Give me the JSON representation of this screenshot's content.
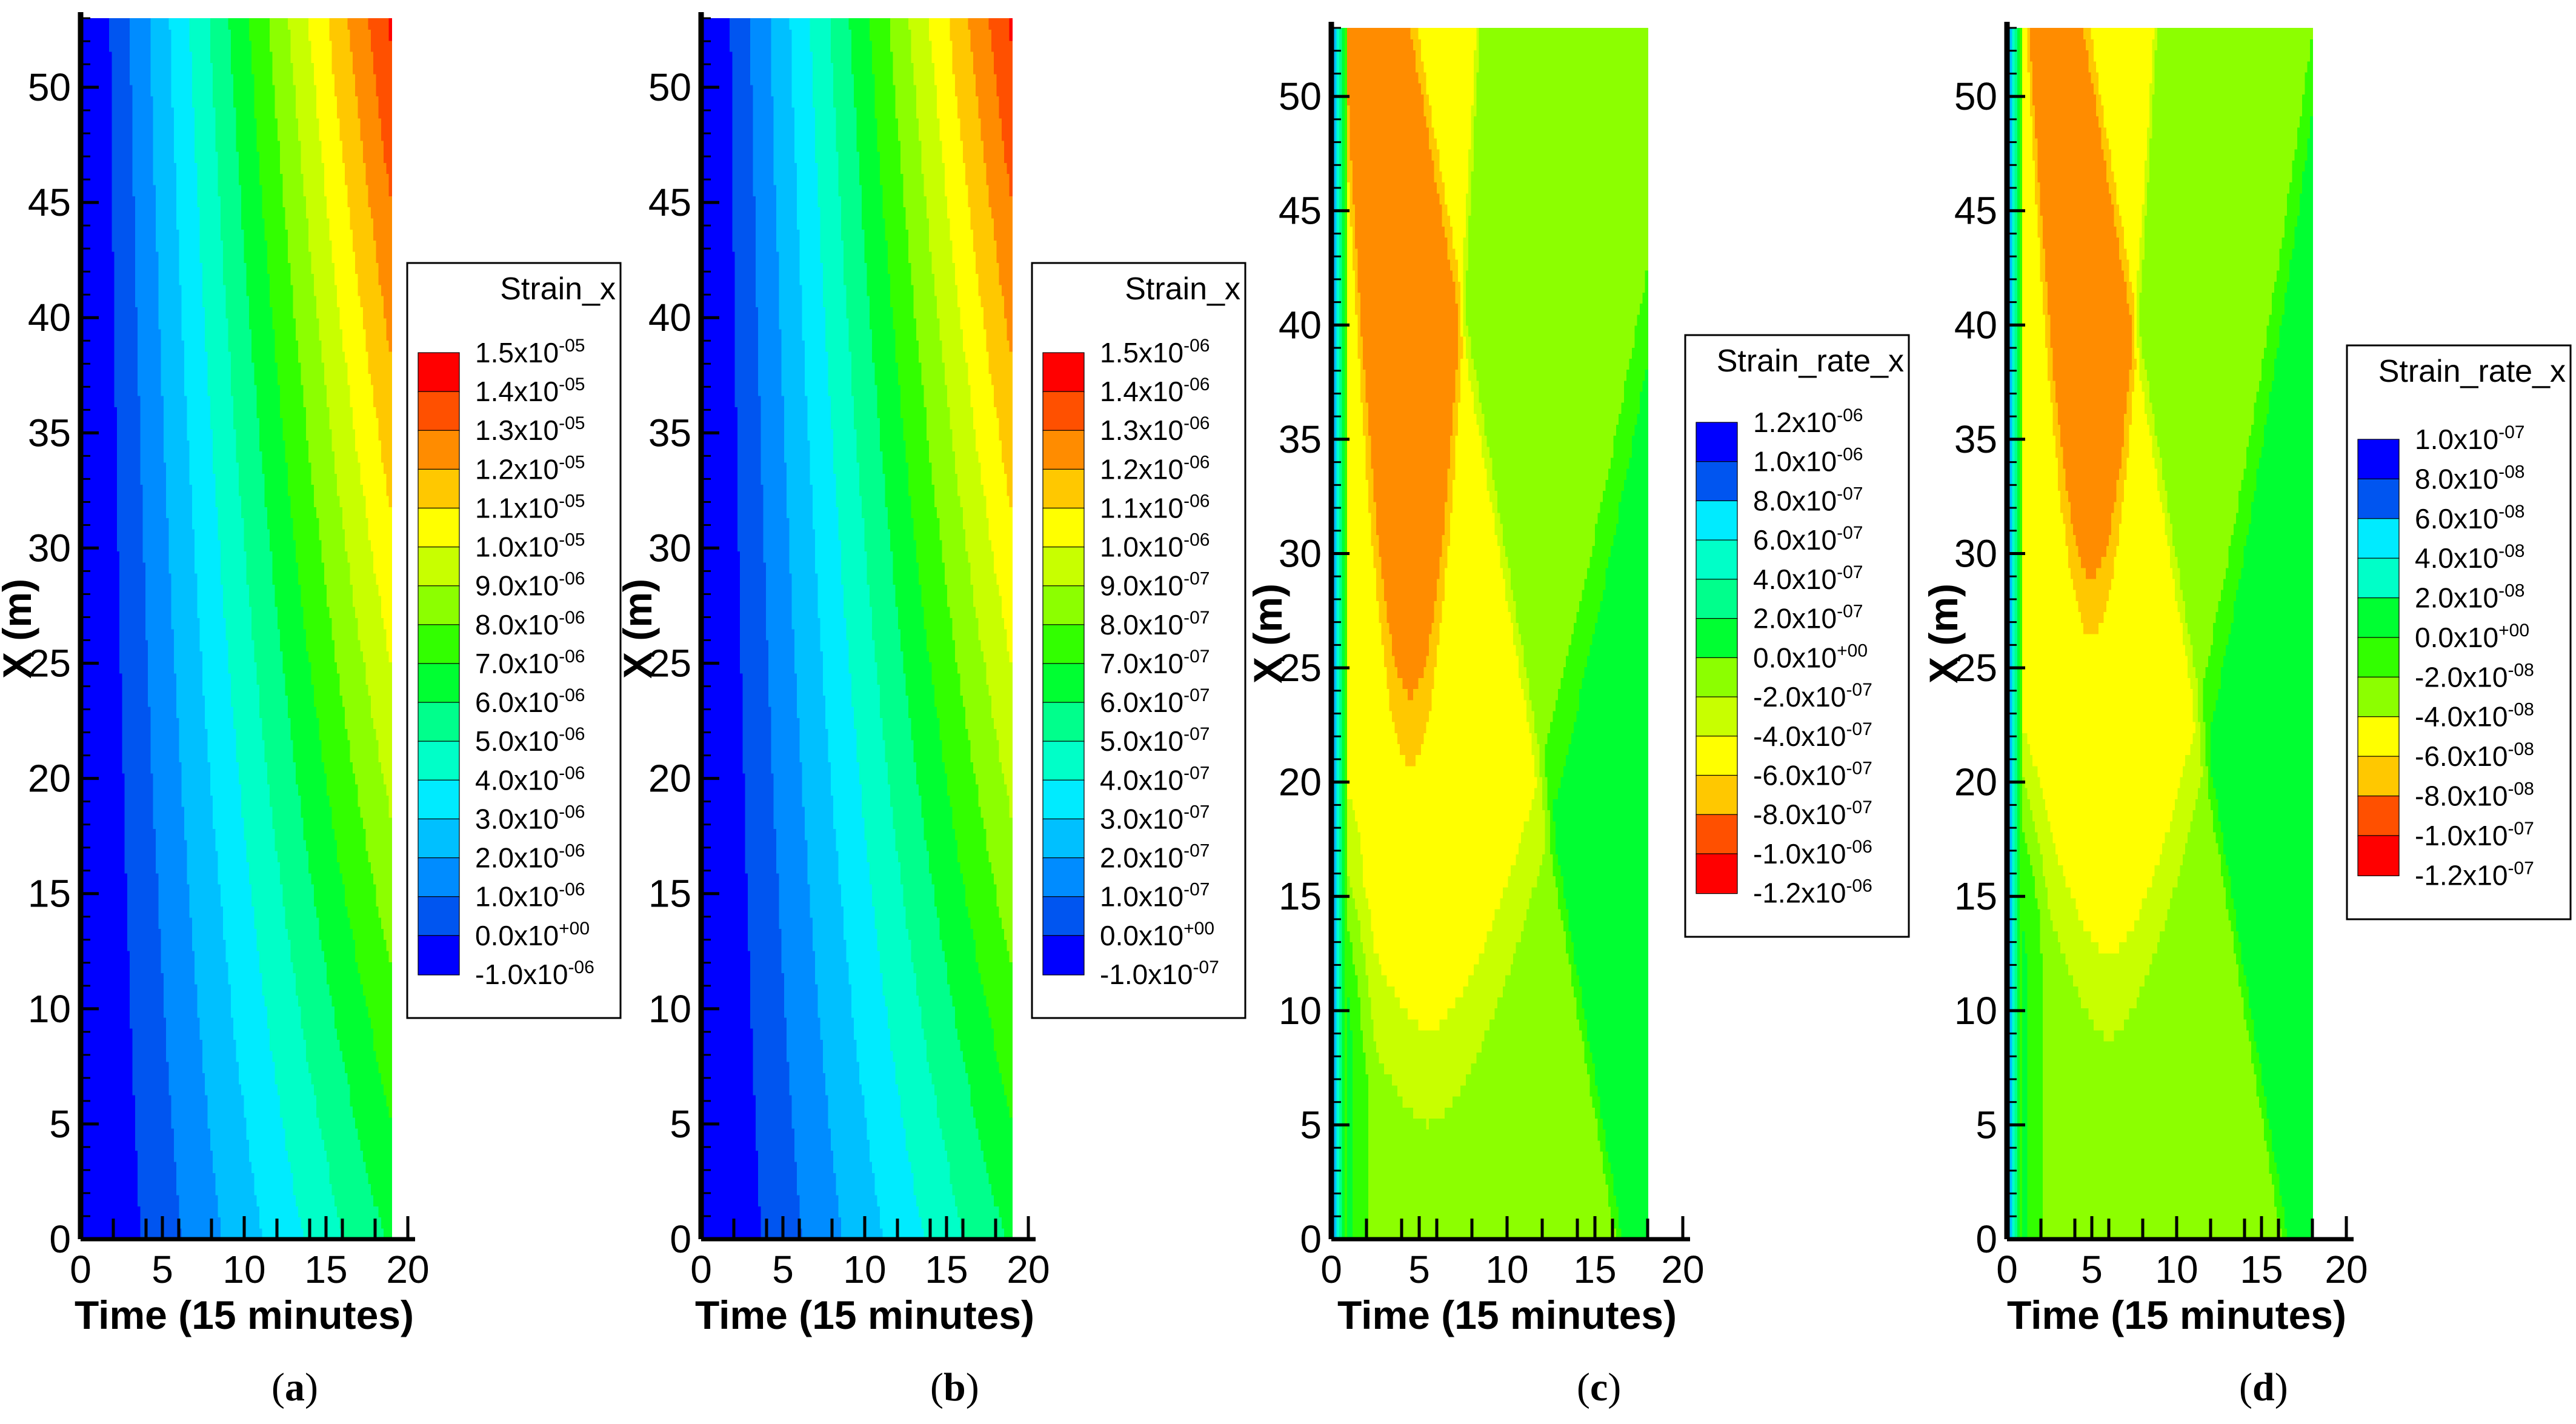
{
  "figure": {
    "panels": [
      {
        "label": "a",
        "legend_title": "Strain_x"
      },
      {
        "label": "b",
        "legend_title": "Strain_x"
      },
      {
        "label": "c",
        "legend_title": "Strain_rate_x"
      },
      {
        "label": "d",
        "legend_title": "Strain_rate_x"
      }
    ],
    "colors": {
      "palette_low_to_high": [
        "#0000ff",
        "#0055f0",
        "#008cff",
        "#00c0ff",
        "#00ebff",
        "#00ffc8",
        "#00ff8c",
        "#00ff32",
        "#32ff00",
        "#8cff00",
        "#c8ff00",
        "#ffff00",
        "#ffc800",
        "#ff8c00",
        "#ff5000",
        "#ff0000"
      ]
    }
  },
  "chart_data": [
    {
      "type": "contour",
      "panel": "(a)",
      "xlabel": "Time (15 minutes)",
      "ylabel": "X (m)",
      "xlim": [
        0,
        20
      ],
      "ylim": [
        0,
        53
      ],
      "x_ticks": [
        "0",
        "5",
        "10",
        "15",
        "20"
      ],
      "y_ticks": [
        "0",
        "5",
        "10",
        "15",
        "20",
        "25",
        "30",
        "35",
        "40",
        "45",
        "50"
      ],
      "data_extent_x": [
        0,
        19
      ],
      "legend": {
        "title": "Strain_x",
        "levels": [
          {
            "mant": "1.5x10",
            "exp": "-05"
          },
          {
            "mant": "1.4x10",
            "exp": "-05"
          },
          {
            "mant": "1.3x10",
            "exp": "-05"
          },
          {
            "mant": "1.2x10",
            "exp": "-05"
          },
          {
            "mant": "1.1x10",
            "exp": "-05"
          },
          {
            "mant": "1.0x10",
            "exp": "-05"
          },
          {
            "mant": "9.0x10",
            "exp": "-06"
          },
          {
            "mant": "8.0x10",
            "exp": "-06"
          },
          {
            "mant": "7.0x10",
            "exp": "-06"
          },
          {
            "mant": "6.0x10",
            "exp": "-06"
          },
          {
            "mant": "5.0x10",
            "exp": "-06"
          },
          {
            "mant": "4.0x10",
            "exp": "-06"
          },
          {
            "mant": "3.0x10",
            "exp": "-06"
          },
          {
            "mant": "2.0x10",
            "exp": "-06"
          },
          {
            "mant": "1.0x10",
            "exp": "-06"
          },
          {
            "mant": "0.0x10",
            "exp": "+00"
          },
          {
            "mant": "-1.0x10",
            "exp": "-06"
          }
        ],
        "band_colors_top_to_bottom": [
          "#ff0000",
          "#ff5000",
          "#ff8c00",
          "#ffc800",
          "#ffff00",
          "#c8ff00",
          "#8cff00",
          "#32ff00",
          "#00ff32",
          "#00ff8c",
          "#00ffc8",
          "#00ebff",
          "#00c0ff",
          "#008cff",
          "#0055f0",
          "#0000ff"
        ]
      }
    },
    {
      "type": "contour",
      "panel": "(b)",
      "xlabel": "Time (15 minutes)",
      "ylabel": "X (m)",
      "xlim": [
        0,
        20
      ],
      "ylim": [
        0,
        53
      ],
      "x_ticks": [
        "0",
        "5",
        "10",
        "15",
        "20"
      ],
      "y_ticks": [
        "0",
        "5",
        "10",
        "15",
        "20",
        "25",
        "30",
        "35",
        "40",
        "45",
        "50"
      ],
      "data_extent_x": [
        0,
        19
      ],
      "legend": {
        "title": "Strain_x",
        "levels": [
          {
            "mant": "1.5x10",
            "exp": "-06"
          },
          {
            "mant": "1.4x10",
            "exp": "-06"
          },
          {
            "mant": "1.3x10",
            "exp": "-06"
          },
          {
            "mant": "1.2x10",
            "exp": "-06"
          },
          {
            "mant": "1.1x10",
            "exp": "-06"
          },
          {
            "mant": "1.0x10",
            "exp": "-06"
          },
          {
            "mant": "9.0x10",
            "exp": "-07"
          },
          {
            "mant": "8.0x10",
            "exp": "-07"
          },
          {
            "mant": "7.0x10",
            "exp": "-07"
          },
          {
            "mant": "6.0x10",
            "exp": "-07"
          },
          {
            "mant": "5.0x10",
            "exp": "-07"
          },
          {
            "mant": "4.0x10",
            "exp": "-07"
          },
          {
            "mant": "3.0x10",
            "exp": "-07"
          },
          {
            "mant": "2.0x10",
            "exp": "-07"
          },
          {
            "mant": "1.0x10",
            "exp": "-07"
          },
          {
            "mant": "0.0x10",
            "exp": "+00"
          },
          {
            "mant": "-1.0x10",
            "exp": "-07"
          }
        ],
        "band_colors_top_to_bottom": [
          "#ff0000",
          "#ff5000",
          "#ff8c00",
          "#ffc800",
          "#ffff00",
          "#c8ff00",
          "#8cff00",
          "#32ff00",
          "#00ff32",
          "#00ff8c",
          "#00ffc8",
          "#00ebff",
          "#00c0ff",
          "#008cff",
          "#0055f0",
          "#0000ff"
        ]
      }
    },
    {
      "type": "contour",
      "panel": "(c)",
      "xlabel": "Time (15 minutes)",
      "ylabel": "X (m)",
      "xlim": [
        0,
        20
      ],
      "ylim": [
        0,
        53
      ],
      "x_ticks": [
        "0",
        "5",
        "10",
        "15",
        "20"
      ],
      "y_ticks": [
        "0",
        "5",
        "10",
        "15",
        "20",
        "25",
        "30",
        "35",
        "40",
        "45",
        "50"
      ],
      "data_extent_x": [
        0,
        18
      ],
      "legend": {
        "title": "Strain_rate_x",
        "levels": [
          {
            "mant": "1.2x10",
            "exp": "-06"
          },
          {
            "mant": "1.0x10",
            "exp": "-06"
          },
          {
            "mant": "8.0x10",
            "exp": "-07"
          },
          {
            "mant": "6.0x10",
            "exp": "-07"
          },
          {
            "mant": "4.0x10",
            "exp": "-07"
          },
          {
            "mant": "2.0x10",
            "exp": "-07"
          },
          {
            "mant": "0.0x10",
            "exp": "+00"
          },
          {
            "mant": "-2.0x10",
            "exp": "-07"
          },
          {
            "mant": "-4.0x10",
            "exp": "-07"
          },
          {
            "mant": "-6.0x10",
            "exp": "-07"
          },
          {
            "mant": "-8.0x10",
            "exp": "-07"
          },
          {
            "mant": "-1.0x10",
            "exp": "-06"
          },
          {
            "mant": "-1.2x10",
            "exp": "-06"
          }
        ],
        "band_colors_top_to_bottom": [
          "#0000ff",
          "#0055f0",
          "#008cff",
          "#00ebff",
          "#00ffc8",
          "#00ff8c",
          "#00ff32",
          "#32ff00",
          "#8cff00",
          "#c8ff00",
          "#ffff00",
          "#ffc800",
          "#ff8c00",
          "#ff5000",
          "#ff0000"
        ]
      }
    },
    {
      "type": "contour",
      "panel": "(d)",
      "xlabel": "Time (15 minutes)",
      "ylabel": "X (m)",
      "xlim": [
        0,
        20
      ],
      "ylim": [
        0,
        53
      ],
      "x_ticks": [
        "0",
        "5",
        "10",
        "15",
        "20"
      ],
      "y_ticks": [
        "0",
        "5",
        "10",
        "15",
        "20",
        "25",
        "30",
        "35",
        "40",
        "45",
        "50"
      ],
      "data_extent_x": [
        0,
        18
      ],
      "legend": {
        "title": "Strain_rate_x",
        "levels": [
          {
            "mant": "1.0x10",
            "exp": "-07"
          },
          {
            "mant": "8.0x10",
            "exp": "-08"
          },
          {
            "mant": "6.0x10",
            "exp": "-08"
          },
          {
            "mant": "4.0x10",
            "exp": "-08"
          },
          {
            "mant": "2.0x10",
            "exp": "-08"
          },
          {
            "mant": "0.0x10",
            "exp": "+00"
          },
          {
            "mant": "-2.0x10",
            "exp": "-08"
          },
          {
            "mant": "-4.0x10",
            "exp": "-08"
          },
          {
            "mant": "-6.0x10",
            "exp": "-08"
          },
          {
            "mant": "-8.0x10",
            "exp": "-08"
          },
          {
            "mant": "-1.0x10",
            "exp": "-07"
          },
          {
            "mant": "-1.2x10",
            "exp": "-07"
          }
        ],
        "band_colors_top_to_bottom": [
          "#0000ff",
          "#0055f0",
          "#008cff",
          "#00ebff",
          "#00ffc8",
          "#00ff8c",
          "#00ff32",
          "#32ff00",
          "#8cff00",
          "#c8ff00",
          "#ffff00",
          "#ffc800",
          "#ff8c00",
          "#ff5000",
          "#ff0000"
        ]
      }
    }
  ]
}
